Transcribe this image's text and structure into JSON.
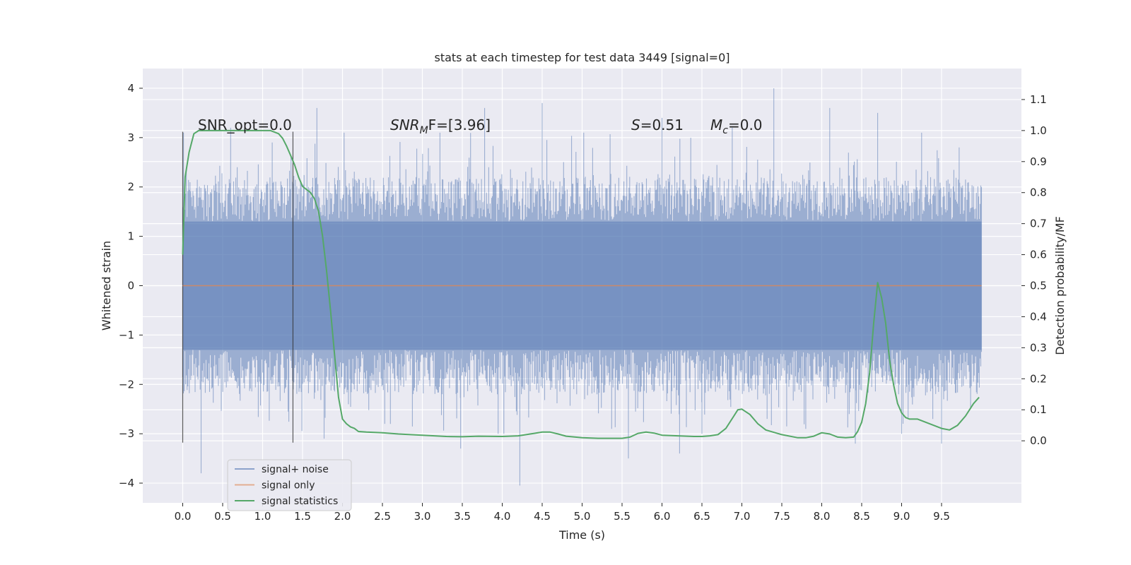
{
  "chart_data": {
    "type": "line",
    "title": "stats at each timestep for test data 3449 [signal=0]",
    "xlabel": "Time (s)",
    "ylabel_left": "Whitened strain",
    "ylabel_right": "Detection probability/MF",
    "xlim": [
      -0.5,
      10.5
    ],
    "ylim_left": [
      -4.4,
      4.4
    ],
    "ylim_right": [
      -0.2,
      1.2
    ],
    "xticks": [
      "0.0",
      "0.5",
      "1.0",
      "1.5",
      "2.0",
      "2.5",
      "3.0",
      "3.5",
      "4.0",
      "4.5",
      "5.0",
      "5.5",
      "6.0",
      "6.5",
      "7.0",
      "7.5",
      "8.0",
      "8.5",
      "9.0",
      "9.5"
    ],
    "yticks_left": [
      "4",
      "3",
      "2",
      "1",
      "0",
      "−1",
      "−2",
      "−3",
      "−4"
    ],
    "yticks_left_values": [
      4,
      3,
      2,
      1,
      0,
      -1,
      -2,
      -3,
      -4
    ],
    "yticks_right": [
      "1.1",
      "1.0",
      "0.9",
      "0.8",
      "0.7",
      "0.6",
      "0.5",
      "0.4",
      "0.3",
      "0.2",
      "0.1",
      "0.0"
    ],
    "yticks_right_values": [
      1.1,
      1.0,
      0.9,
      0.8,
      0.7,
      0.6,
      0.5,
      0.4,
      0.3,
      0.2,
      0.1,
      0.0
    ],
    "grid": true,
    "legend_position": "lower-left",
    "annotations": {
      "snr_opt": "SNR_opt=0.0",
      "snr_mf_base": "SNR",
      "snr_mf_sub": "M",
      "snr_mf_rest": "F=[3.96]",
      "s_label": "S",
      "s_value": "=0.51",
      "mc_label": "M",
      "mc_sub": "c",
      "mc_value": "=0.0"
    },
    "vertical_markers_x": [
      0.0,
      1.38
    ],
    "series": [
      {
        "name": "signal+ noise",
        "color": "#4c72b0",
        "description_level": "noise band approx ±1.3 with spikes to ±3.5",
        "band": [
          -1.3,
          1.3
        ],
        "spikes": [
          [
            0.01,
            3.1
          ],
          [
            0.23,
            -3.8
          ],
          [
            0.6,
            3.2
          ],
          [
            1.12,
            2.9
          ],
          [
            1.68,
            3.6
          ],
          [
            1.77,
            -3.1
          ],
          [
            2.02,
            3.1
          ],
          [
            2.6,
            -2.8
          ],
          [
            3.22,
            3.1
          ],
          [
            3.48,
            -3.3
          ],
          [
            3.78,
            3.6
          ],
          [
            4.02,
            -3.0
          ],
          [
            4.22,
            -4.05
          ],
          [
            4.5,
            3.7
          ],
          [
            5.02,
            3.1
          ],
          [
            5.37,
            -2.9
          ],
          [
            5.58,
            -3.5
          ],
          [
            6.0,
            3.4
          ],
          [
            6.22,
            -3.4
          ],
          [
            6.5,
            -3.0
          ],
          [
            6.88,
            3.2
          ],
          [
            7.4,
            4.0
          ],
          [
            7.8,
            -2.9
          ],
          [
            8.1,
            3.6
          ],
          [
            8.42,
            -3.2
          ],
          [
            8.7,
            3.5
          ],
          [
            9.0,
            -3.0
          ],
          [
            9.25,
            3.1
          ],
          [
            9.5,
            -3.2
          ],
          [
            9.72,
            2.8
          ]
        ]
      },
      {
        "name": "signal only",
        "color": "#dd8452",
        "x": [
          0.0,
          10.0
        ],
        "y": [
          0.0,
          0.0
        ]
      },
      {
        "name": "signal statistics",
        "color": "#55a868",
        "axis": "right",
        "x": [
          0.0,
          0.03,
          0.08,
          0.14,
          0.2,
          0.3,
          0.5,
          0.7,
          0.9,
          1.0,
          1.1,
          1.15,
          1.2,
          1.25,
          1.3,
          1.35,
          1.4,
          1.45,
          1.5,
          1.55,
          1.6,
          1.65,
          1.7,
          1.75,
          1.8,
          1.85,
          1.9,
          1.95,
          2.0,
          2.05,
          2.1,
          2.15,
          2.2,
          2.3,
          2.5,
          2.7,
          3.0,
          3.3,
          3.5,
          3.7,
          4.0,
          4.2,
          4.4,
          4.5,
          4.6,
          4.7,
          4.8,
          5.0,
          5.2,
          5.5,
          5.6,
          5.7,
          5.8,
          5.9,
          6.0,
          6.2,
          6.4,
          6.5,
          6.6,
          6.7,
          6.8,
          6.9,
          6.95,
          7.0,
          7.1,
          7.2,
          7.3,
          7.5,
          7.7,
          7.8,
          7.9,
          8.0,
          8.1,
          8.2,
          8.3,
          8.4,
          8.45,
          8.5,
          8.55,
          8.6,
          8.65,
          8.7,
          8.75,
          8.8,
          8.85,
          8.9,
          8.95,
          9.0,
          9.05,
          9.1,
          9.2,
          9.3,
          9.4,
          9.5,
          9.6,
          9.7,
          9.8,
          9.9,
          9.97
        ],
        "y": [
          0.6,
          0.85,
          0.93,
          0.99,
          1.0,
          1.0,
          1.0,
          1.0,
          1.0,
          1.0,
          1.0,
          0.995,
          0.99,
          0.975,
          0.95,
          0.92,
          0.89,
          0.85,
          0.82,
          0.81,
          0.8,
          0.78,
          0.74,
          0.66,
          0.55,
          0.42,
          0.28,
          0.14,
          0.07,
          0.055,
          0.045,
          0.04,
          0.03,
          0.028,
          0.026,
          0.022,
          0.018,
          0.014,
          0.013,
          0.015,
          0.014,
          0.016,
          0.024,
          0.028,
          0.028,
          0.022,
          0.015,
          0.01,
          0.008,
          0.008,
          0.012,
          0.024,
          0.028,
          0.025,
          0.018,
          0.016,
          0.014,
          0.014,
          0.016,
          0.02,
          0.04,
          0.08,
          0.1,
          0.102,
          0.085,
          0.055,
          0.035,
          0.02,
          0.01,
          0.01,
          0.015,
          0.026,
          0.022,
          0.012,
          0.01,
          0.012,
          0.03,
          0.06,
          0.12,
          0.22,
          0.38,
          0.51,
          0.46,
          0.38,
          0.26,
          0.18,
          0.12,
          0.09,
          0.075,
          0.07,
          0.07,
          0.06,
          0.05,
          0.04,
          0.035,
          0.05,
          0.08,
          0.12,
          0.14
        ]
      }
    ]
  }
}
